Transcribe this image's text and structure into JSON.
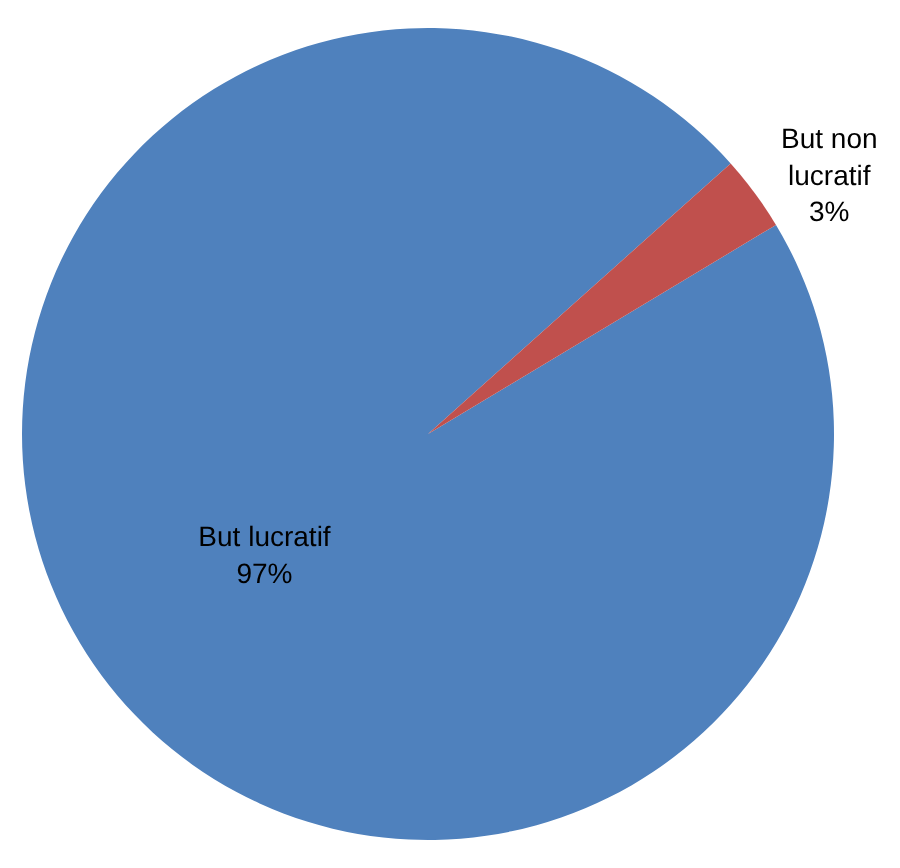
{
  "chart_data": {
    "type": "pie",
    "categories": [
      "But lucratif",
      "But non lucratif"
    ],
    "values": [
      97,
      3
    ],
    "colors": [
      "#4f81bd",
      "#c0504d"
    ],
    "value_labels": [
      "97%",
      "3%"
    ],
    "legend": false
  }
}
